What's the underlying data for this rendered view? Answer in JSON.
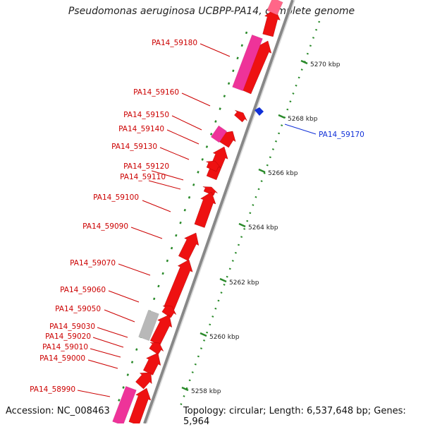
{
  "title": "Pseudomonas aeruginosa UCBPP-PA14, complete genome",
  "accession": "Accession: NC_008463",
  "summary": "Topology: circular; Length: 6,537,648 bp; Genes: 5,964",
  "colors": {
    "gene": "#ee1111",
    "pseudo": "#ee3399",
    "other": "#b8b8b8",
    "highlight": "#1030d8",
    "tick": "#2a8a2a",
    "label": "#cc0000",
    "backbone": "#888888"
  },
  "scale_ticks": [
    {
      "kbp": 5258,
      "label": "5258 kbp"
    },
    {
      "kbp": 5260,
      "label": "5260 kbp"
    },
    {
      "kbp": 5262,
      "label": "5262 kbp"
    },
    {
      "kbp": 5264,
      "label": "5264 kbp"
    },
    {
      "kbp": 5266,
      "label": "5266 kbp"
    },
    {
      "kbp": 5268,
      "label": "5268 kbp"
    },
    {
      "kbp": 5270,
      "label": "5270 kbp"
    }
  ],
  "gene_labels": [
    {
      "name": "PA14_59180",
      "color": "label"
    },
    {
      "name": "PA14_59160",
      "color": "label"
    },
    {
      "name": "PA14_59150",
      "color": "label"
    },
    {
      "name": "PA14_59140",
      "color": "label"
    },
    {
      "name": "PA14_59130",
      "color": "label"
    },
    {
      "name": "PA14_59120",
      "color": "label"
    },
    {
      "name": "PA14_59110",
      "color": "label"
    },
    {
      "name": "PA14_59100",
      "color": "label"
    },
    {
      "name": "PA14_59090",
      "color": "label"
    },
    {
      "name": "PA14_59070",
      "color": "label"
    },
    {
      "name": "PA14_59060",
      "color": "label"
    },
    {
      "name": "PA14_59050",
      "color": "label"
    },
    {
      "name": "PA14_59030",
      "color": "label"
    },
    {
      "name": "PA14_59020",
      "color": "label"
    },
    {
      "name": "PA14_59010",
      "color": "label"
    },
    {
      "name": "PA14_59000",
      "color": "label"
    },
    {
      "name": "PA14_58990",
      "color": "label"
    },
    {
      "name": "PA14_59170",
      "color": "highlight"
    }
  ]
}
